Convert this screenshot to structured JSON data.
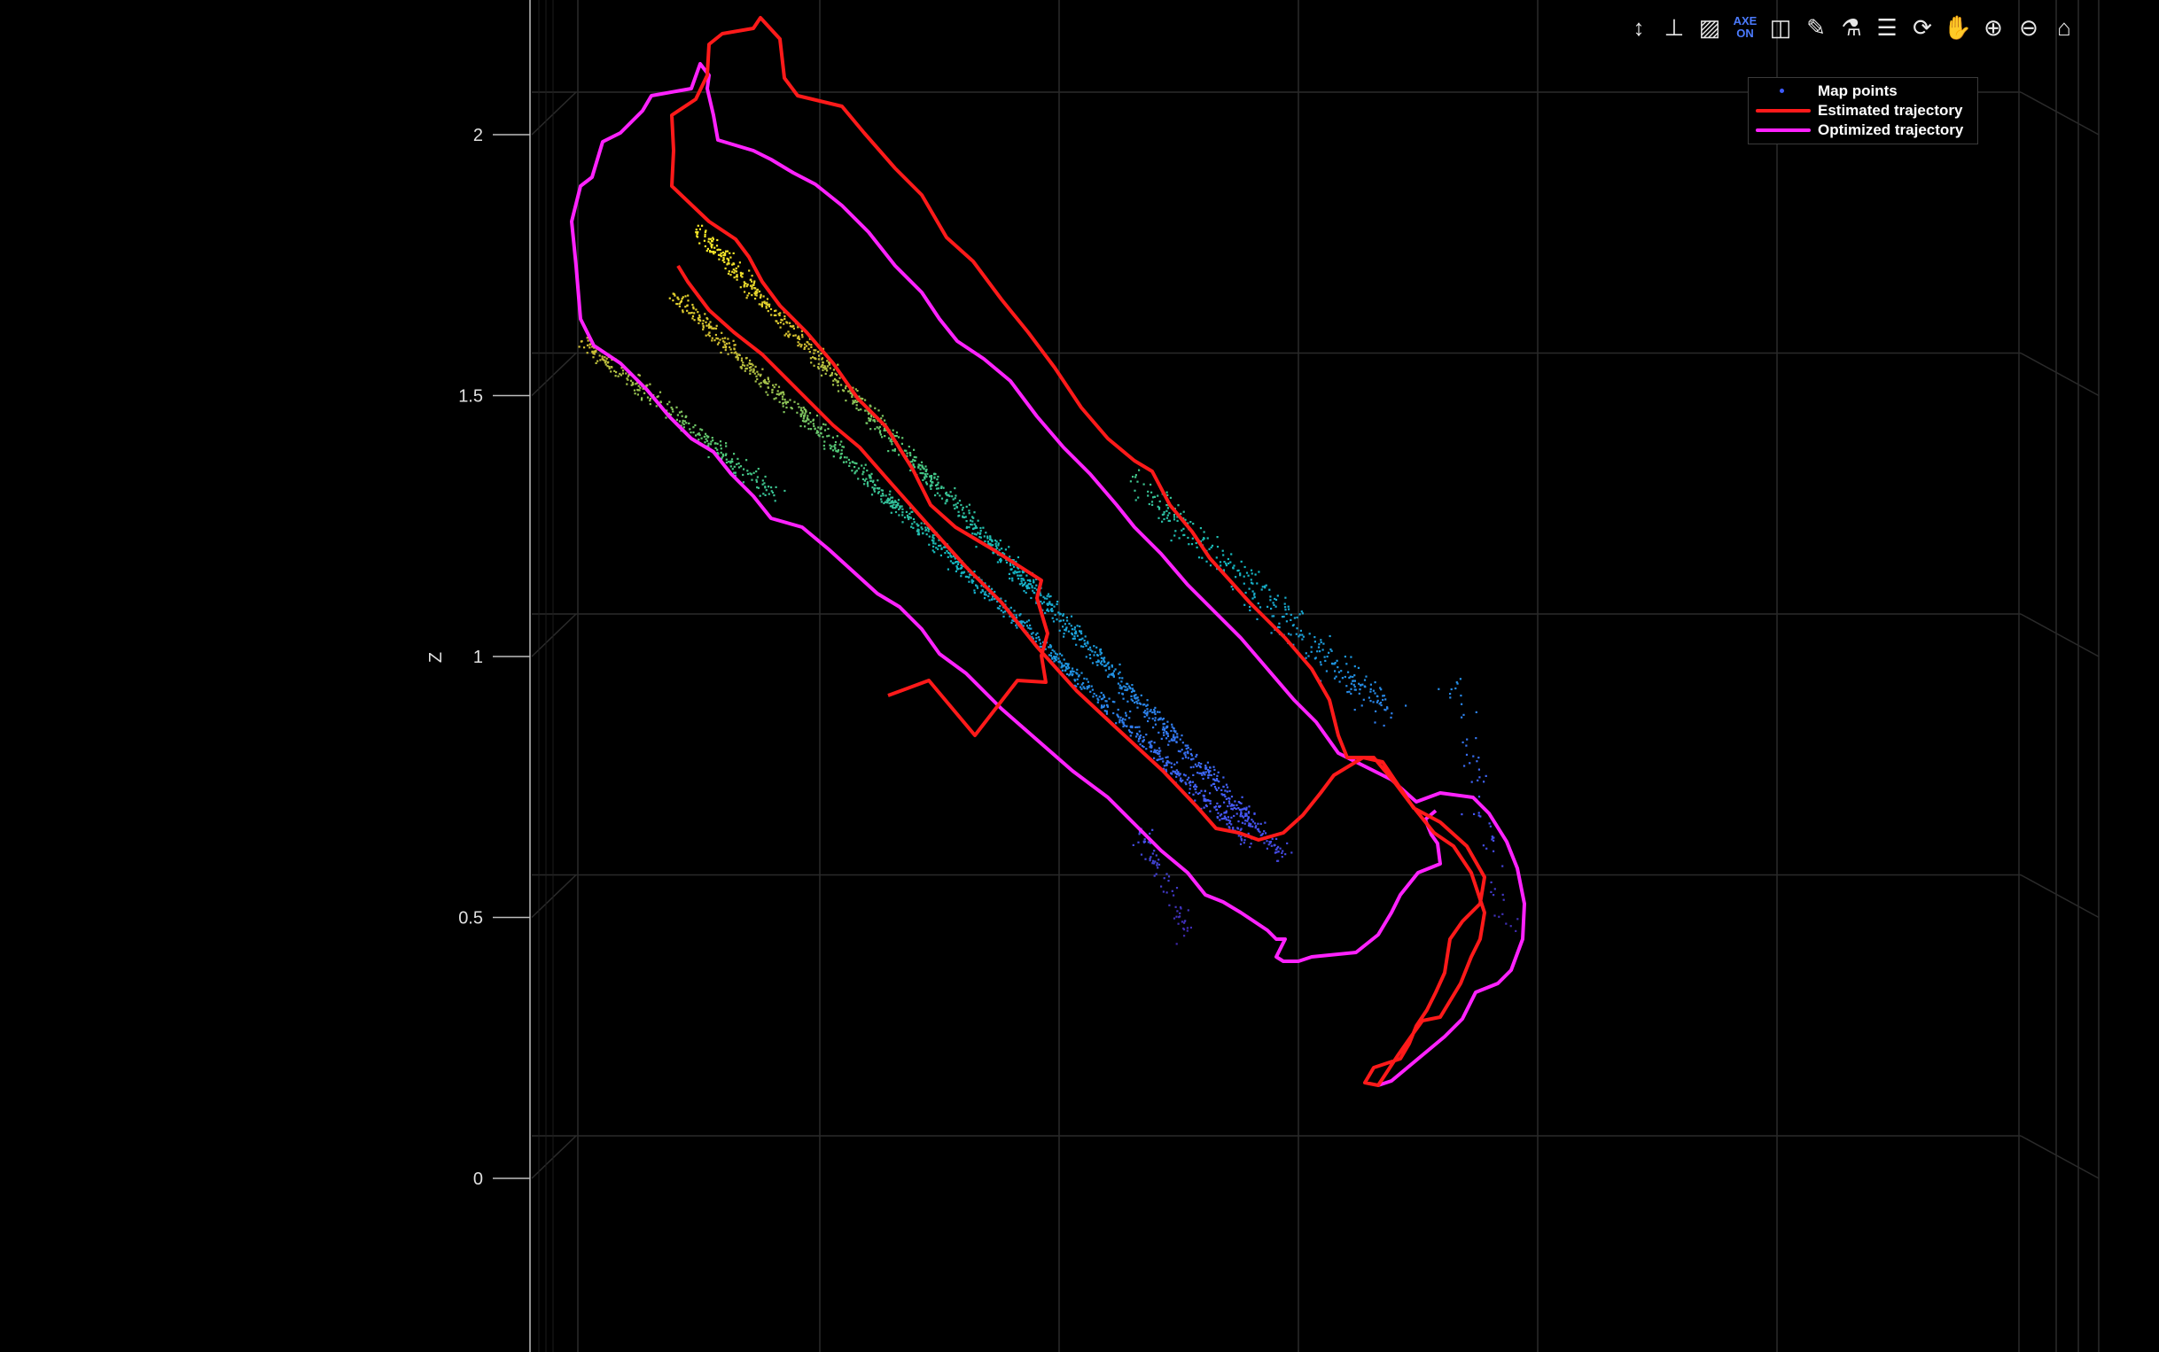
{
  "chart_data": {
    "type": "scatter",
    "zlabel": "Z",
    "zlim": [
      -0.3,
      2.3
    ],
    "z_ticks": [
      0,
      0.5,
      1,
      1.5,
      2
    ],
    "z_tick_labels": [
      "0",
      "0.5",
      "1",
      "1.5",
      "2"
    ],
    "grid": true,
    "legend_position": "top-right",
    "series": [
      {
        "name": "Map points",
        "kind": "points",
        "color": "#3d5bff",
        "colormap": "parula"
      },
      {
        "name": "Estimated trajectory",
        "kind": "line",
        "color": "#ff1a1a"
      },
      {
        "name": "Optimized trajectory",
        "kind": "line",
        "color": "#ff22ff"
      }
    ]
  },
  "toolbar": {
    "items": [
      {
        "name": "pan-vertical-icon",
        "glyph": "↕"
      },
      {
        "name": "axes-icon",
        "glyph": "⊥"
      },
      {
        "name": "hatch-icon",
        "glyph": "▨"
      },
      {
        "name": "axes-on-toggle",
        "label_top": "AXE",
        "label_bottom": "ON"
      },
      {
        "name": "cube-view-icon",
        "glyph": "◫"
      },
      {
        "name": "brush-icon",
        "glyph": "✎"
      },
      {
        "name": "flask-icon",
        "glyph": "⚗"
      },
      {
        "name": "legend-icon",
        "glyph": "☰"
      },
      {
        "name": "rotate-icon",
        "glyph": "⟳"
      },
      {
        "name": "pan-hand-icon",
        "glyph": "✋"
      },
      {
        "name": "zoom-in-icon",
        "glyph": "⊕"
      },
      {
        "name": "zoom-out-icon",
        "glyph": "⊖"
      },
      {
        "name": "home-icon",
        "glyph": "⌂"
      }
    ]
  }
}
